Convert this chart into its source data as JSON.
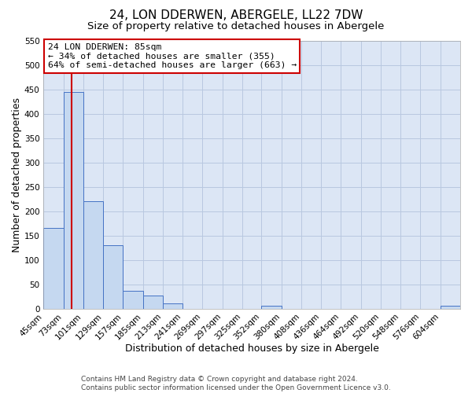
{
  "title": "24, LON DDERWEN, ABERGELE, LL22 7DW",
  "subtitle": "Size of property relative to detached houses in Abergele",
  "xlabel": "Distribution of detached houses by size in Abergele",
  "ylabel": "Number of detached properties",
  "bin_labels": [
    "45sqm",
    "73sqm",
    "101sqm",
    "129sqm",
    "157sqm",
    "185sqm",
    "213sqm",
    "241sqm",
    "269sqm",
    "297sqm",
    "325sqm",
    "352sqm",
    "380sqm",
    "408sqm",
    "436sqm",
    "464sqm",
    "492sqm",
    "520sqm",
    "548sqm",
    "576sqm",
    "604sqm"
  ],
  "bin_edges": [
    45,
    73,
    101,
    129,
    157,
    185,
    213,
    241,
    269,
    297,
    325,
    352,
    380,
    408,
    436,
    464,
    492,
    520,
    548,
    576,
    604
  ],
  "bar_heights": [
    165,
    445,
    220,
    130,
    37,
    26,
    10,
    0,
    0,
    0,
    0,
    5,
    0,
    0,
    0,
    0,
    0,
    0,
    0,
    0,
    5
  ],
  "bar_color": "#c5d8f0",
  "bar_edgecolor": "#4472c4",
  "ylim": [
    0,
    550
  ],
  "yticks": [
    0,
    50,
    100,
    150,
    200,
    250,
    300,
    350,
    400,
    450,
    500,
    550
  ],
  "property_line_x": 85,
  "property_line_color": "#cc0000",
  "annotation_title": "24 LON DDERWEN: 85sqm",
  "annotation_line1": "← 34% of detached houses are smaller (355)",
  "annotation_line2": "64% of semi-detached houses are larger (663) →",
  "footer_line1": "Contains HM Land Registry data © Crown copyright and database right 2024.",
  "footer_line2": "Contains public sector information licensed under the Open Government Licence v3.0.",
  "background_color": "#ffffff",
  "axes_facecolor": "#dce6f5",
  "grid_color": "#b8c8e0",
  "title_fontsize": 11,
  "subtitle_fontsize": 9.5,
  "axis_label_fontsize": 9,
  "tick_fontsize": 7.5,
  "footer_fontsize": 6.5
}
